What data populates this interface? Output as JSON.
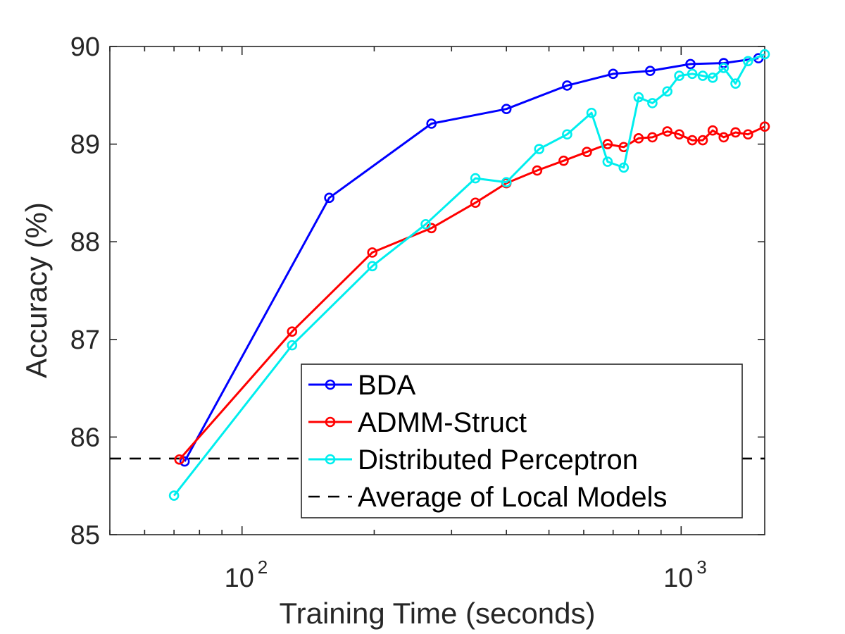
{
  "chart_data": {
    "type": "line",
    "title": "",
    "xlabel": "Training Time (seconds)",
    "ylabel": "Accuracy (%)",
    "xscale": "log",
    "xlim": [
      50,
      1550
    ],
    "ylim": [
      85,
      90
    ],
    "yticks": [
      85,
      86,
      87,
      88,
      89,
      90
    ],
    "xticks": [
      {
        "value": 100,
        "base": "10",
        "exp": "2"
      },
      {
        "value": 1000,
        "base": "10",
        "exp": "3"
      }
    ],
    "grid": false,
    "legend_position": "bottom-right",
    "series": [
      {
        "name": "BDA",
        "color": "#0000ff",
        "marker": "o",
        "linestyle": "solid",
        "x": [
          74,
          158,
          270,
          400,
          550,
          700,
          850,
          1050,
          1250,
          1500
        ],
        "y": [
          85.75,
          88.45,
          89.21,
          89.36,
          89.6,
          89.72,
          89.75,
          89.82,
          89.83,
          89.88
        ]
      },
      {
        "name": "ADMM-Struct",
        "color": "#ff0000",
        "marker": "o",
        "linestyle": "solid",
        "x": [
          72,
          130,
          198,
          270,
          340,
          400,
          470,
          540,
          610,
          680,
          740,
          800,
          860,
          930,
          990,
          1060,
          1120,
          1180,
          1250,
          1330,
          1420,
          1550
        ],
        "y": [
          85.77,
          87.08,
          87.89,
          88.14,
          88.4,
          88.6,
          88.73,
          88.83,
          88.92,
          89.0,
          88.97,
          89.06,
          89.07,
          89.13,
          89.1,
          89.04,
          89.04,
          89.14,
          89.07,
          89.12,
          89.1,
          89.18
        ]
      },
      {
        "name": "Distributed Perceptron",
        "color": "#00eeee",
        "marker": "o",
        "linestyle": "solid",
        "x": [
          70,
          130,
          198,
          262,
          340,
          400,
          475,
          550,
          625,
          680,
          740,
          800,
          860,
          930,
          990,
          1060,
          1120,
          1180,
          1250,
          1330,
          1420,
          1550
        ],
        "y": [
          85.4,
          86.94,
          87.75,
          88.18,
          88.65,
          88.61,
          88.95,
          89.1,
          89.32,
          88.82,
          88.76,
          89.48,
          89.42,
          89.54,
          89.7,
          89.72,
          89.7,
          89.68,
          89.78,
          89.62,
          89.85,
          89.92
        ]
      }
    ],
    "reference_lines": [
      {
        "name": "Average of Local Models",
        "y": 85.78,
        "color": "#000000",
        "linestyle": "dashed"
      }
    ]
  }
}
